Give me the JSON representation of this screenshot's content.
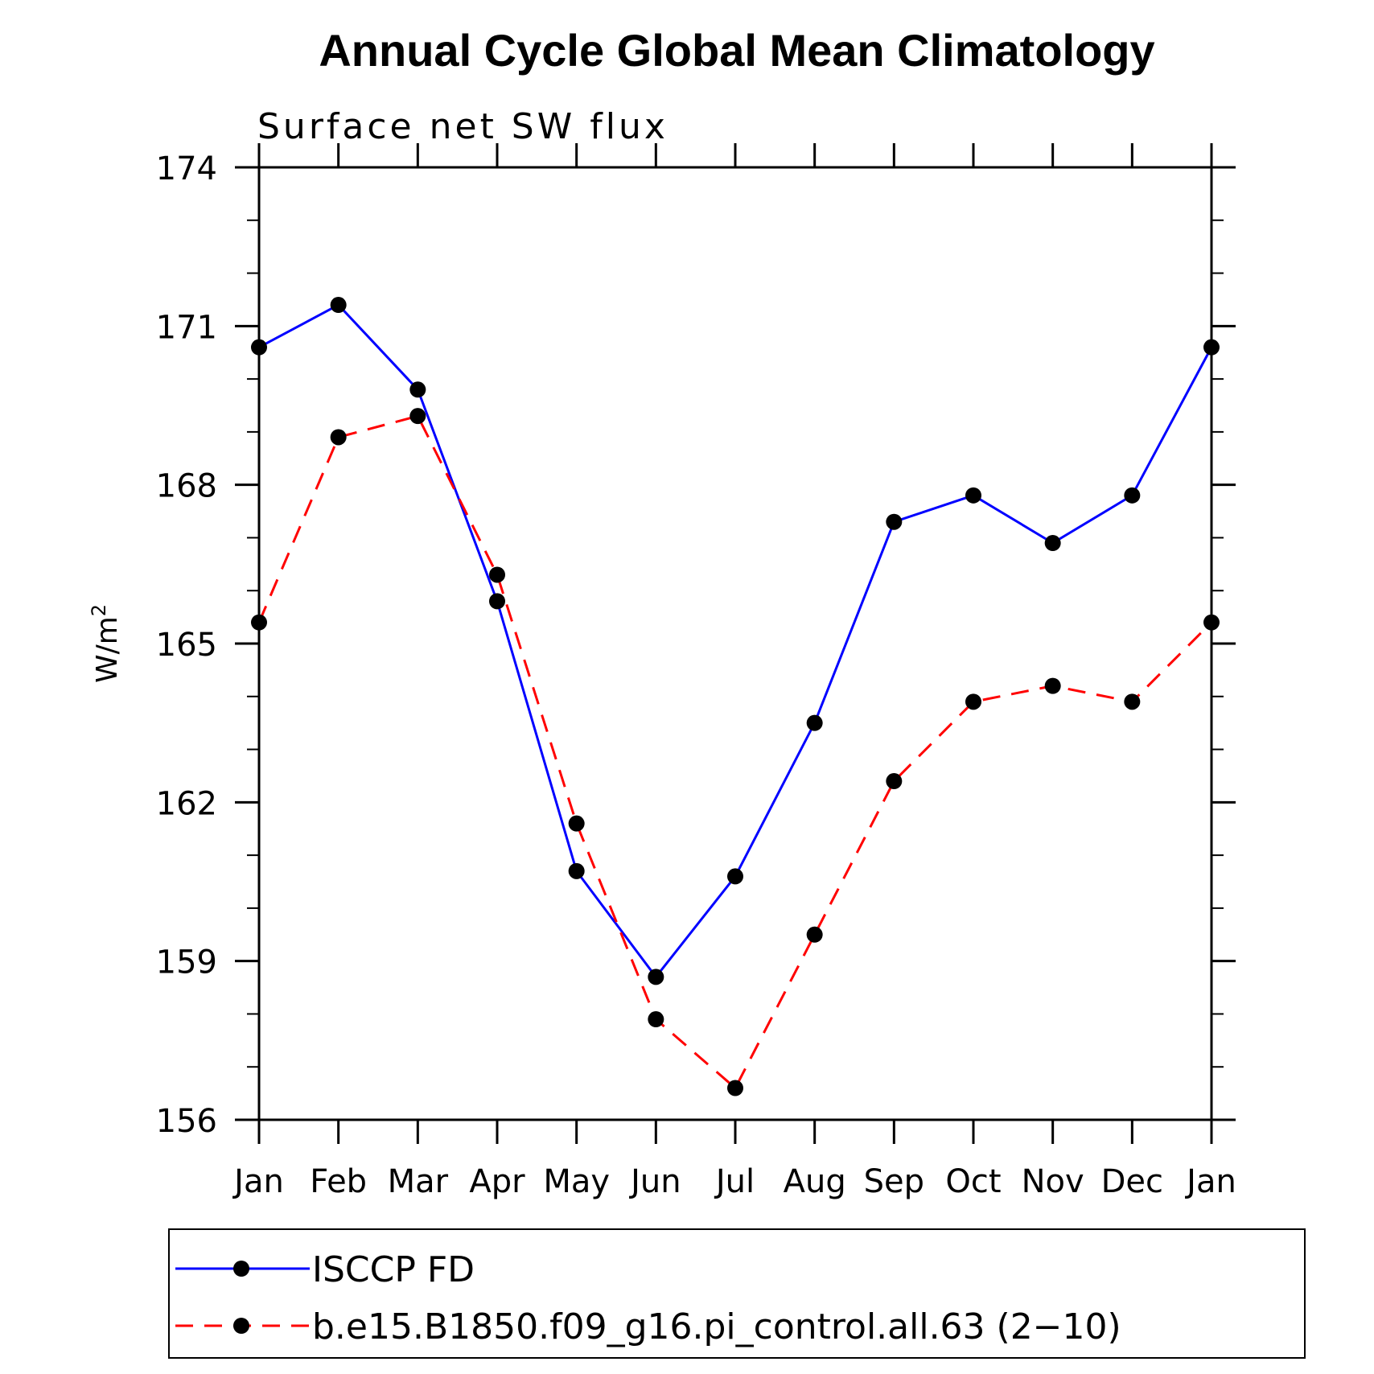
{
  "chart_data": {
    "type": "line",
    "title": "Annual Cycle Global Mean Climatology",
    "subtitle": "Surface net SW flux",
    "xlabel": "",
    "ylabel": "W/m",
    "ylabel_superscript": "2",
    "categories": [
      "Jan",
      "Feb",
      "Mar",
      "Apr",
      "May",
      "Jun",
      "Jul",
      "Aug",
      "Sep",
      "Oct",
      "Nov",
      "Dec",
      "Jan"
    ],
    "ylim": [
      156,
      174
    ],
    "yticks": [
      156,
      159,
      162,
      165,
      168,
      171,
      174
    ],
    "grid": false,
    "series": [
      {
        "name": "ISCCP FD",
        "color": "#0000ff",
        "dash": "solid",
        "values": [
          170.6,
          171.4,
          169.8,
          165.8,
          160.7,
          158.7,
          160.6,
          163.5,
          167.3,
          167.8,
          166.9,
          167.8,
          170.6
        ]
      },
      {
        "name": "b.e15.B1850.f09_g16.pi_control.all.63 (2−10)",
        "color": "#ff0000",
        "dash": "dashed",
        "values": [
          165.4,
          168.9,
          169.3,
          166.3,
          161.6,
          157.9,
          156.6,
          159.5,
          162.4,
          163.9,
          164.2,
          163.9,
          165.4
        ]
      }
    ],
    "legend_position": "bottom"
  }
}
